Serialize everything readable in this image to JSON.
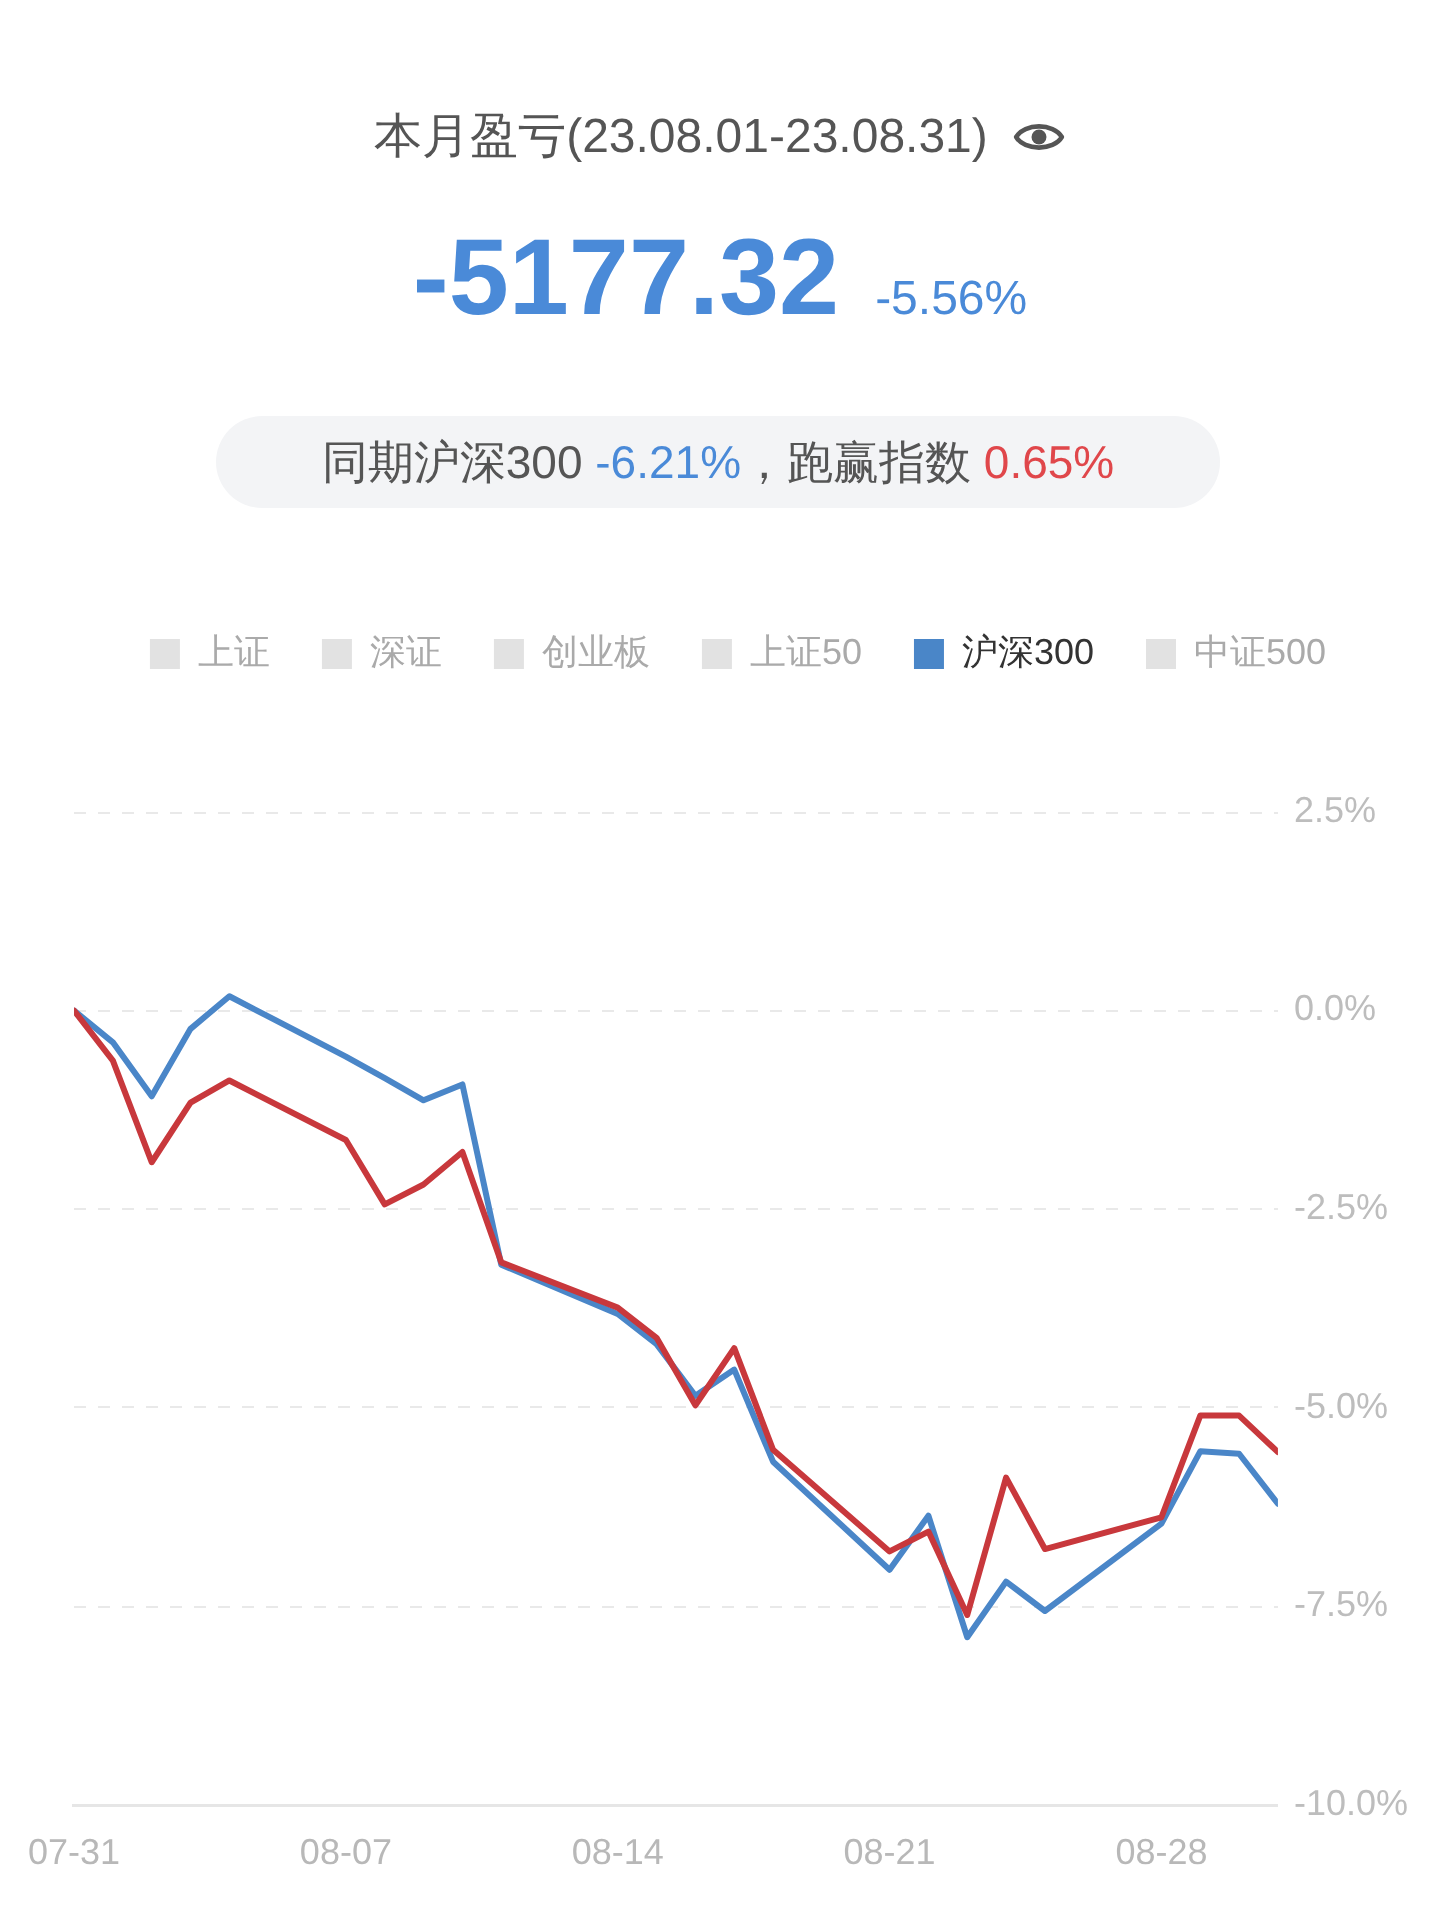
{
  "chart_data": {
    "type": "line",
    "title": "本月盈亏(23.08.01-23.08.31)",
    "subtitle": "-5177.32",
    "annotations": [
      "-5.56%",
      "同期沪深300 -6.21%，跑赢指数 0.65%"
    ],
    "x": [
      "--07-31",
      "--08-01",
      "--08-02",
      "--08-03",
      "--08-04",
      "--08-07",
      "--08-08",
      "--08-09",
      "--08-10",
      "--08-11",
      "--08-14",
      "--08-15",
      "--08-16",
      "--08-17",
      "--08-18",
      "--08-21",
      "--08-22",
      "--08-23",
      "--08-24",
      "--08-25",
      "--08-28",
      "--08-29",
      "--08-30",
      "--08-31"
    ],
    "series": [
      {
        "color": "#c8383c",
        "values": [
          0,
          -0.63,
          -1.91,
          -1.16,
          -0.88,
          -1.63,
          -2.44,
          -2.19,
          -1.78,
          -3.17,
          -3.74,
          -4.12,
          -4.97,
          -4.25,
          -5.53,
          -6.81,
          -6.56,
          -7.61,
          -5.88,
          -6.78,
          -6.38,
          -5.1,
          -5.1,
          -5.56
        ]
      },
      {
        "name": "上证",
        "color": "#e2e2e2",
        "values": [
          null,
          null,
          null,
          null,
          null,
          null,
          null,
          null,
          null,
          null,
          null,
          null,
          null,
          null,
          null,
          null,
          null,
          null,
          null,
          null,
          null,
          null,
          null,
          null
        ]
      },
      {
        "name": "深证",
        "color": "#e2e2e2",
        "values": [
          null,
          null,
          null,
          null,
          null,
          null,
          null,
          null,
          null,
          null,
          null,
          null,
          null,
          null,
          null,
          null,
          null,
          null,
          null,
          null,
          null,
          null,
          null,
          null
        ]
      },
      {
        "name": "创业板",
        "color": "#e2e2e2",
        "values": [
          null,
          null,
          null,
          null,
          null,
          null,
          null,
          null,
          null,
          null,
          null,
          null,
          null,
          null,
          null,
          null,
          null,
          null,
          null,
          null,
          null,
          null,
          null,
          null
        ]
      },
      {
        "name": "上证50",
        "color": "#e2e2e2",
        "values": [
          null,
          null,
          null,
          null,
          null,
          null,
          null,
          null,
          null,
          null,
          null,
          null,
          null,
          null,
          null,
          null,
          null,
          null,
          null,
          null,
          null,
          null,
          null,
          null
        ]
      },
      {
        "name": "沪深300",
        "color": "#4a86c8",
        "values": [
          0,
          -0.4,
          -1.08,
          -0.23,
          0.18,
          -0.58,
          -0.85,
          -1.13,
          -0.93,
          -3.2,
          -3.82,
          -4.2,
          -4.85,
          -4.52,
          -5.68,
          -7.04,
          -6.36,
          -7.89,
          -7.19,
          -7.56,
          -6.46,
          -5.55,
          -5.58,
          -6.21
        ]
      },
      {
        "name": "中证500",
        "color": "#e2e2e2",
        "values": [
          null,
          null,
          null,
          null,
          null,
          null,
          null,
          null,
          null,
          null,
          null,
          null,
          null,
          null,
          null,
          null,
          null,
          null,
          null,
          null,
          null,
          null,
          null,
          null
        ]
      }
    ],
    "xlim": [
      "--07-31",
      "--08-31"
    ],
    "xticks": [
      {
        "value": "--07-31",
        "label": "07-31"
      },
      {
        "value": "--08-07",
        "label": "08-07"
      },
      {
        "value": "--08-14",
        "label": "08-14"
      },
      {
        "value": "--08-21",
        "label": "08-21"
      },
      {
        "value": "--08-28",
        "label": "08-28"
      }
    ],
    "ylim": [
      -10,
      2.5
    ],
    "yticks": [
      {
        "value": -10,
        "label": "-10.0%"
      },
      {
        "value": -7.5,
        "label": "-7.5%"
      },
      {
        "value": -5,
        "label": "-5.0%"
      },
      {
        "value": -2.5,
        "label": "-2.5%"
      },
      {
        "value": 0,
        "label": "0.0%"
      },
      {
        "value": 2.5,
        "label": "2.5%"
      }
    ],
    "grid": "y",
    "legend": "top",
    "marker": "none",
    "line_style": "solid"
  }
}
